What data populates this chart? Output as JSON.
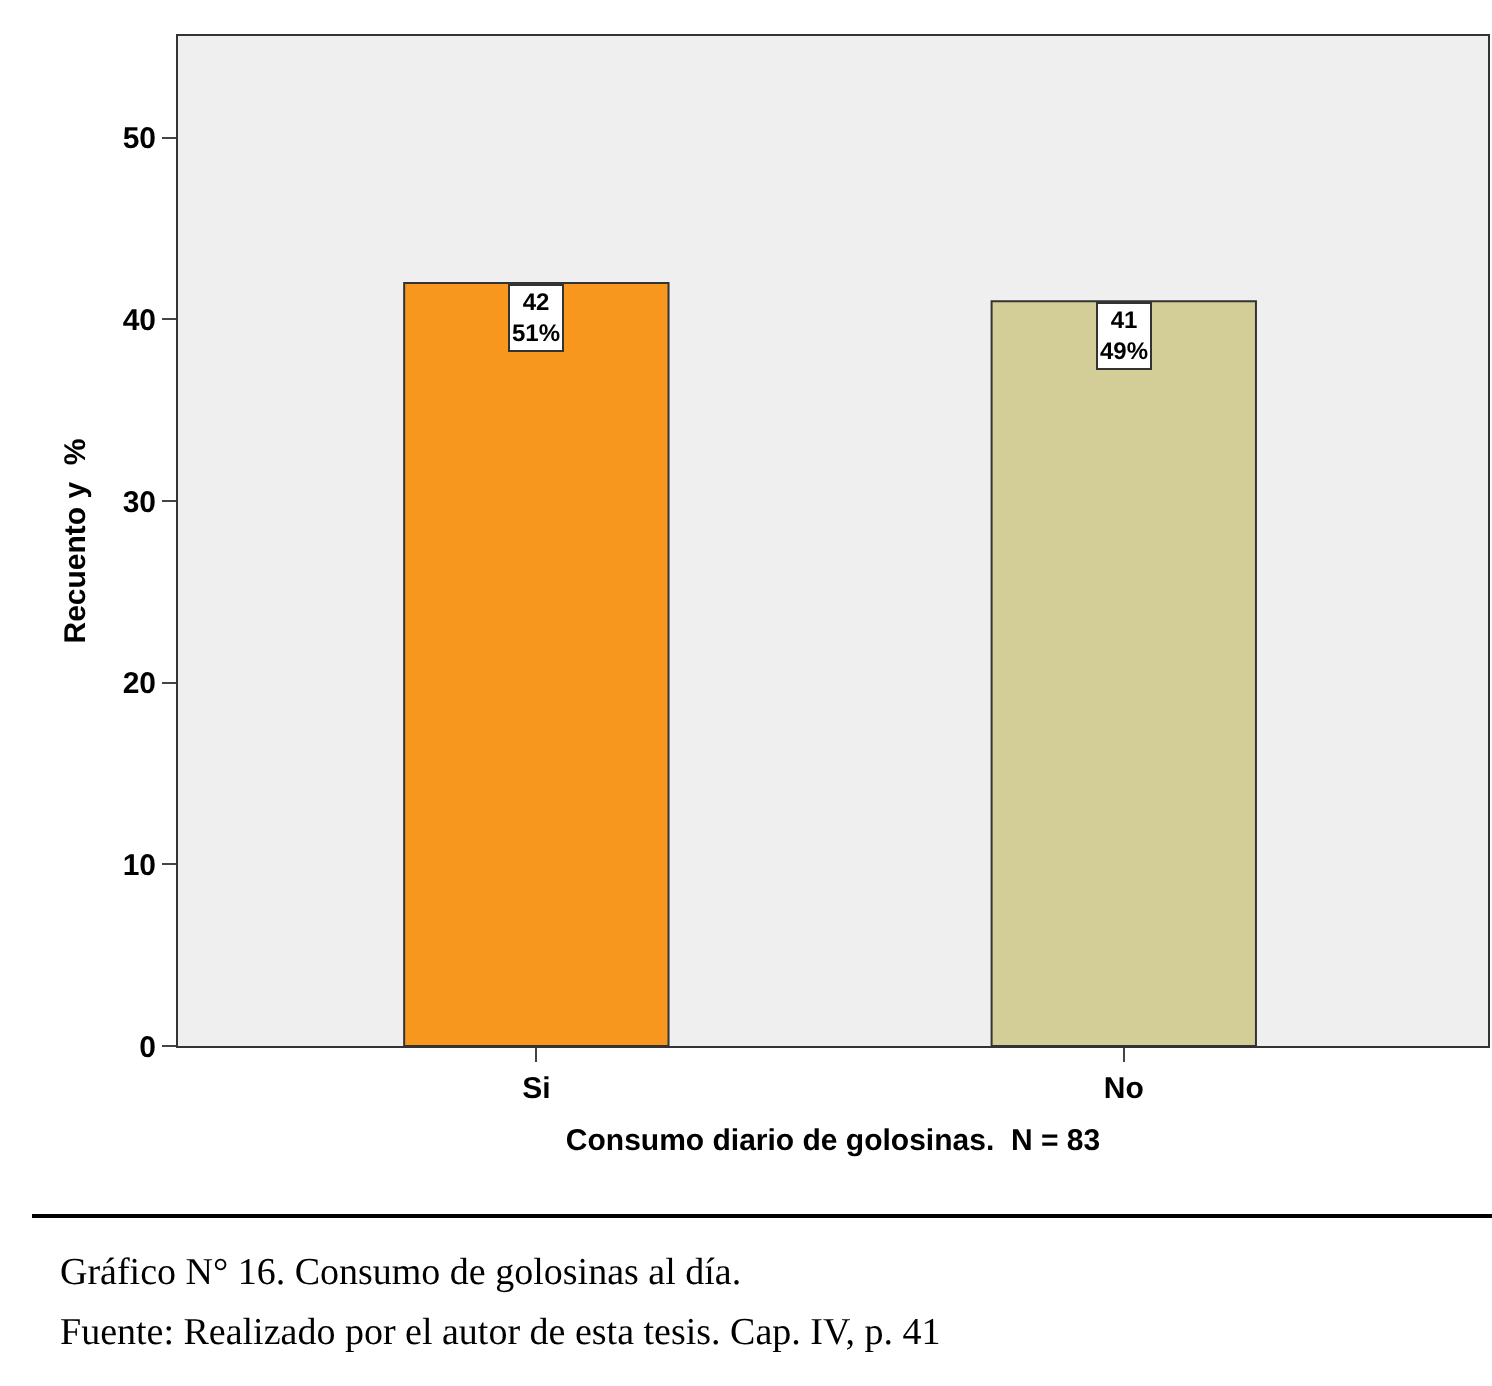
{
  "chart_data": {
    "type": "bar",
    "xlabel": "Consumo diario de golosinas.  N = 83",
    "ylabel": "Recuento y  %",
    "categories": [
      "Si",
      "No"
    ],
    "values": [
      42,
      41
    ],
    "colors": [
      "#f7971e",
      "#d3ce98"
    ],
    "value_labels": [
      "42\n51%",
      "41\n49%"
    ],
    "ylim": [
      0,
      55.6
    ],
    "yticks": [
      0,
      10,
      20,
      30,
      40,
      50
    ],
    "grid": false,
    "annotations": [
      "Gráfico N° 16. Consumo de golosinas al día.",
      "Fuente: Realizado por el autor de esta tesis. Cap. IV, p. 41"
    ]
  }
}
